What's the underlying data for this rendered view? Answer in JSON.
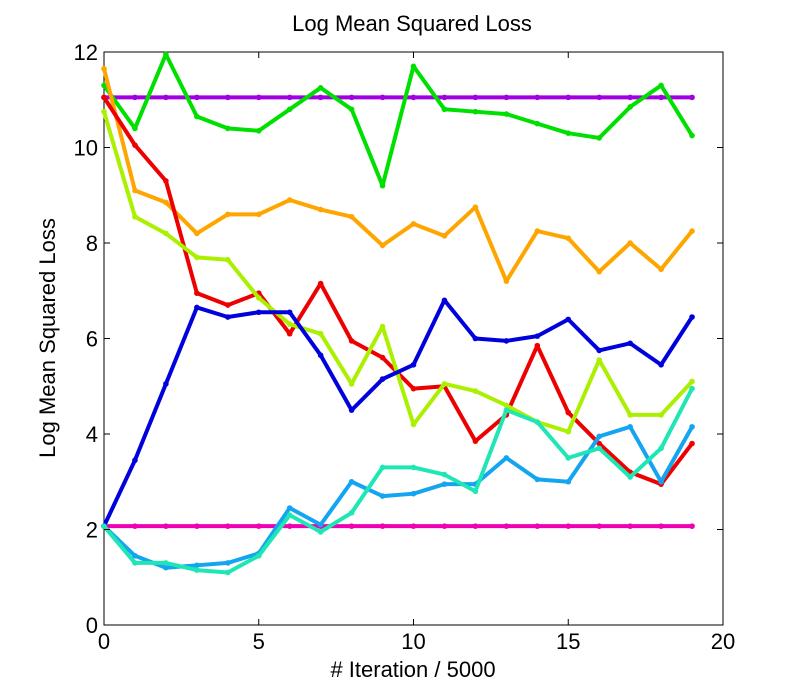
{
  "chart_data": {
    "type": "line",
    "title": "Log Mean Squared Loss",
    "xlabel": "# Iteration / 5000",
    "ylabel": "Log Mean Squared Loss",
    "xlim": [
      0,
      20
    ],
    "ylim": [
      0,
      12
    ],
    "xticks": [
      0,
      5,
      10,
      15,
      20
    ],
    "yticks": [
      0,
      2,
      4,
      6,
      8,
      10,
      12
    ],
    "grid": false,
    "legend": "none",
    "x": [
      0,
      1,
      2,
      3,
      4,
      5,
      6,
      7,
      8,
      9,
      10,
      11,
      12,
      13,
      14,
      15,
      16,
      17,
      18,
      19
    ],
    "series": [
      {
        "name": "purple",
        "color": "#a000e0",
        "values": [
          11.05,
          11.05,
          11.05,
          11.05,
          11.05,
          11.05,
          11.05,
          11.05,
          11.05,
          11.05,
          11.05,
          11.05,
          11.05,
          11.05,
          11.05,
          11.05,
          11.05,
          11.05,
          11.05,
          11.05
        ]
      },
      {
        "name": "magenta",
        "color": "#f000b0",
        "values": [
          2.07,
          2.07,
          2.07,
          2.07,
          2.07,
          2.07,
          2.07,
          2.07,
          2.07,
          2.07,
          2.07,
          2.07,
          2.07,
          2.07,
          2.07,
          2.07,
          2.07,
          2.07,
          2.07,
          2.07
        ]
      },
      {
        "name": "green",
        "color": "#00e000",
        "values": [
          11.3,
          10.4,
          11.95,
          10.65,
          10.4,
          10.35,
          10.8,
          11.25,
          10.8,
          9.2,
          11.7,
          10.8,
          10.75,
          10.7,
          10.5,
          10.3,
          10.2,
          10.85,
          11.3,
          10.25
        ]
      },
      {
        "name": "orange",
        "color": "#ffa500",
        "values": [
          11.65,
          9.1,
          8.85,
          8.2,
          8.6,
          8.6,
          8.9,
          8.7,
          8.55,
          7.95,
          8.4,
          8.15,
          8.75,
          7.2,
          8.25,
          8.1,
          7.4,
          8.0,
          7.45,
          8.25
        ]
      },
      {
        "name": "red",
        "color": "#ee0000",
        "values": [
          11.05,
          10.05,
          9.3,
          6.95,
          6.7,
          6.95,
          6.1,
          7.15,
          5.95,
          5.6,
          4.95,
          5.0,
          3.85,
          4.4,
          5.85,
          4.45,
          3.8,
          3.2,
          2.95,
          3.8
        ]
      },
      {
        "name": "yellow-green",
        "color": "#aaf000",
        "values": [
          10.75,
          8.55,
          8.2,
          7.7,
          7.65,
          6.85,
          6.3,
          6.1,
          5.05,
          6.25,
          4.2,
          5.05,
          4.9,
          4.6,
          4.25,
          4.05,
          5.55,
          4.4,
          4.4,
          5.1
        ]
      },
      {
        "name": "blue",
        "color": "#0000dd",
        "values": [
          2.07,
          3.45,
          5.05,
          6.65,
          6.45,
          6.55,
          6.55,
          5.65,
          4.5,
          5.15,
          5.45,
          6.8,
          6.0,
          5.95,
          6.05,
          6.4,
          5.75,
          5.9,
          5.45,
          6.45
        ]
      },
      {
        "name": "sky-blue",
        "color": "#14a5f0",
        "values": [
          2.07,
          1.45,
          1.2,
          1.25,
          1.3,
          1.5,
          2.45,
          2.1,
          3.0,
          2.7,
          2.75,
          2.95,
          2.95,
          3.5,
          3.05,
          3.0,
          3.95,
          4.15,
          3.0,
          4.15
        ]
      },
      {
        "name": "aqua-green",
        "color": "#1ee6b4",
        "values": [
          2.07,
          1.3,
          1.3,
          1.15,
          1.1,
          1.45,
          2.3,
          1.95,
          2.35,
          3.3,
          3.3,
          3.15,
          2.8,
          4.5,
          4.25,
          3.5,
          3.7,
          3.1,
          3.7,
          4.95
        ]
      }
    ]
  }
}
